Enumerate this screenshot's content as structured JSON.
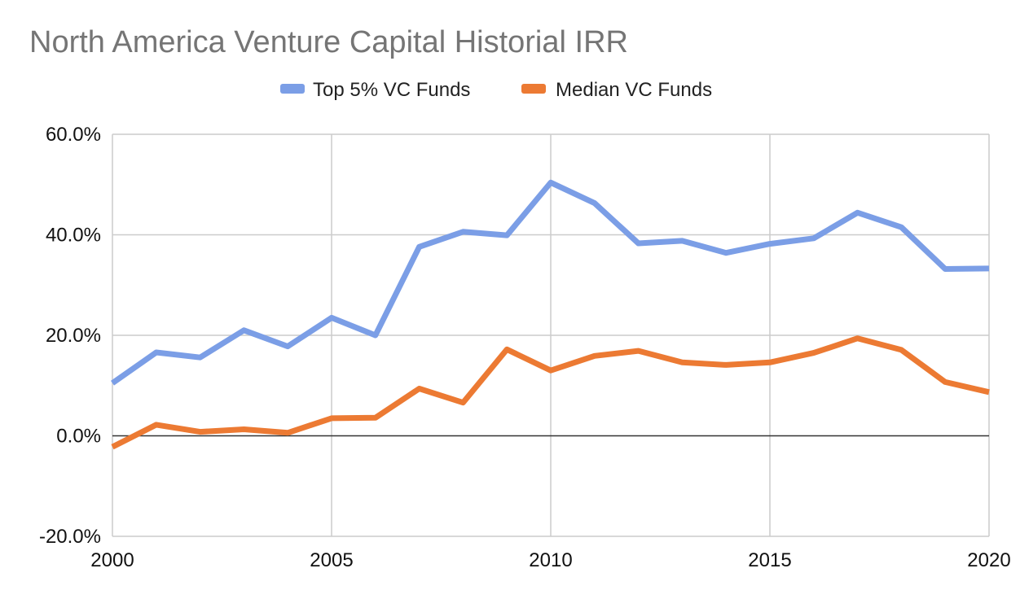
{
  "chart_data": {
    "type": "line",
    "title": "North America Venture Capital Historial IRR",
    "xlabel": "",
    "ylabel": "",
    "xlim": [
      2000,
      2020
    ],
    "ylim": [
      -20,
      60
    ],
    "x_ticks": [
      2000,
      2005,
      2010,
      2015,
      2020
    ],
    "x_tick_labels": [
      "2000",
      "2005",
      "2010",
      "2015",
      "2020"
    ],
    "y_ticks": [
      -20,
      0,
      20,
      40,
      60
    ],
    "y_tick_labels": [
      "-20.0%",
      "0.0%",
      "20.0%",
      "40.0%",
      "60.0%"
    ],
    "legend_position": "top",
    "grid": true,
    "x": [
      2000,
      2001,
      2002,
      2003,
      2004,
      2005,
      2006,
      2007,
      2008,
      2009,
      2010,
      2011,
      2012,
      2013,
      2014,
      2015,
      2016,
      2017,
      2018,
      2019,
      2020
    ],
    "series": [
      {
        "name": "Top 5% VC Funds",
        "color": "#7b9ee6",
        "values": [
          10.5,
          16.6,
          15.6,
          21.0,
          17.8,
          23.5,
          20.0,
          37.6,
          40.6,
          39.9,
          50.4,
          46.3,
          38.3,
          38.8,
          36.4,
          38.2,
          39.3,
          44.4,
          41.5,
          33.2,
          33.3
        ]
      },
      {
        "name": "Median VC Funds",
        "color": "#ec7a33",
        "values": [
          -2.2,
          2.2,
          0.8,
          1.3,
          0.6,
          3.5,
          3.6,
          9.4,
          6.6,
          17.2,
          13.0,
          15.9,
          16.9,
          14.6,
          14.1,
          14.6,
          16.5,
          19.4,
          17.1,
          10.7,
          8.7
        ]
      }
    ]
  }
}
